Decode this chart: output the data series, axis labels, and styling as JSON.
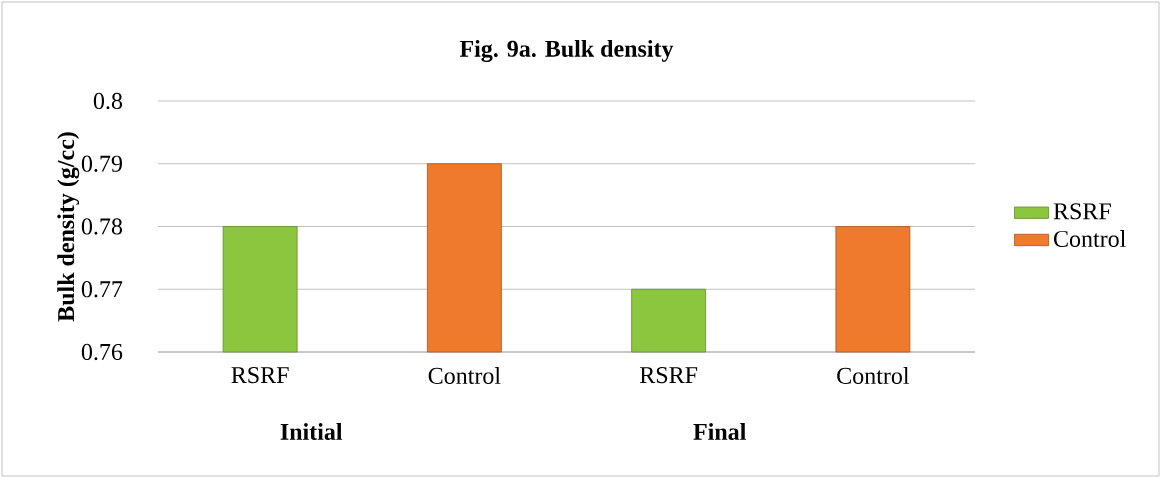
{
  "chart_data": {
    "type": "bar",
    "title": "Fig. 9a. Bulk density",
    "ylabel": "Bulk density (g/cc)",
    "categories": [
      "RSRF",
      "Control",
      "RSRF",
      "Control"
    ],
    "series": [
      {
        "name": "RSRF",
        "color": "#8cc63e",
        "values": [
          0.78,
          null,
          0.77,
          null
        ]
      },
      {
        "name": "Control",
        "color": "#f07a2c",
        "values": [
          null,
          0.79,
          null,
          0.78
        ]
      }
    ],
    "ylim": [
      0.76,
      0.8
    ],
    "yticks": [
      0.76,
      0.77,
      0.78,
      0.79,
      0.8
    ],
    "grid": "y",
    "legend": "right",
    "annotations": [
      "Initial",
      "Final"
    ]
  }
}
